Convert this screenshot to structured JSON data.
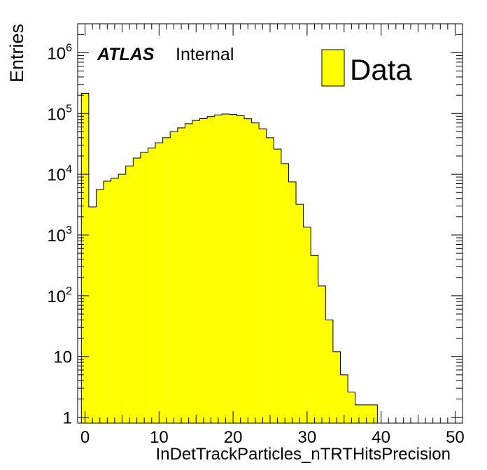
{
  "chart_data": {
    "type": "bar",
    "title": "",
    "xlabel": "InDetTrackParticles_nTRTHitsPrecision",
    "ylabel": "Entries",
    "log_y": true,
    "xlim": [
      -1,
      51
    ],
    "ylim": [
      0.8,
      3000000
    ],
    "bin_width": 1,
    "bin_starts": [
      -0.5,
      0.5,
      1.5,
      2.5,
      3.5,
      4.5,
      5.5,
      6.5,
      7.5,
      8.5,
      9.5,
      10.5,
      11.5,
      12.5,
      13.5,
      14.5,
      15.5,
      16.5,
      17.5,
      18.5,
      19.5,
      20.5,
      21.5,
      22.5,
      23.5,
      24.5,
      25.5,
      26.5,
      27.5,
      28.5,
      29.5,
      30.5,
      31.5,
      32.5,
      33.5,
      34.5,
      35.5,
      36.5,
      37.5,
      38.5
    ],
    "values": [
      215000,
      2900,
      5600,
      7700,
      8600,
      10000,
      13700,
      18500,
      23000,
      27000,
      33000,
      40000,
      50000,
      58000,
      68000,
      77000,
      83000,
      89000,
      95000,
      98000,
      97000,
      92000,
      82000,
      70000,
      56000,
      40000,
      26000,
      15000,
      7500,
      3200,
      1350,
      460,
      145,
      40,
      12,
      5,
      2.6,
      1.6,
      1.6,
      1.6
    ],
    "series": [
      {
        "name": "Data",
        "values": [
          215000,
          2900,
          5600,
          7700,
          8600,
          10000,
          13700,
          18500,
          23000,
          27000,
          33000,
          40000,
          50000,
          58000,
          68000,
          77000,
          83000,
          89000,
          95000,
          98000,
          97000,
          92000,
          82000,
          70000,
          56000,
          40000,
          26000,
          15000,
          7500,
          3200,
          1350,
          460,
          145,
          40,
          12,
          5,
          2.6,
          1.6,
          1.6,
          1.6
        ]
      }
    ],
    "x_ticks": [
      0,
      10,
      20,
      30,
      40,
      50
    ],
    "y_ticks": [
      {
        "value": 1,
        "base": "1",
        "exp": ""
      },
      {
        "value": 10,
        "base": "10",
        "exp": ""
      },
      {
        "value": 100,
        "base": "10",
        "exp": "2"
      },
      {
        "value": 1000,
        "base": "10",
        "exp": "3"
      },
      {
        "value": 10000,
        "base": "10",
        "exp": "4"
      },
      {
        "value": 100000,
        "base": "10",
        "exp": "5"
      },
      {
        "value": 1000000,
        "base": "10",
        "exp": "6"
      }
    ],
    "fill_color": "#ffff00",
    "line_color": "#000000",
    "legend": {
      "label": "Data",
      "position": "top-right"
    },
    "annotation": {
      "experiment": "ATLAS",
      "status": "Internal"
    },
    "grid": false
  }
}
